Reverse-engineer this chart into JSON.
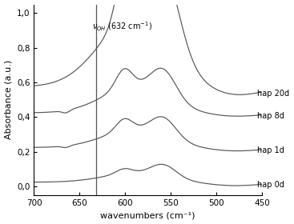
{
  "xlabel": "wavenumbers (cm⁻¹)",
  "ylabel": "Absorbance (a.u.)",
  "xlim": [
    700,
    450
  ],
  "ylim": [
    -0.05,
    1.05
  ],
  "vline_x": 632,
  "series_labels": [
    "hap 0d",
    "hap 1d",
    "hap 8d",
    "hap 20d"
  ],
  "offsets": [
    0.0,
    0.2,
    0.4,
    0.55
  ],
  "color": "#555555",
  "yticks": [
    0.0,
    0.2,
    0.4,
    0.6,
    0.8,
    1.0
  ],
  "ytick_labels": [
    "0,0",
    "0,2",
    "0,4",
    "0,6",
    "0,8",
    "1,0"
  ],
  "xticks": [
    700,
    650,
    600,
    550,
    500,
    450
  ]
}
